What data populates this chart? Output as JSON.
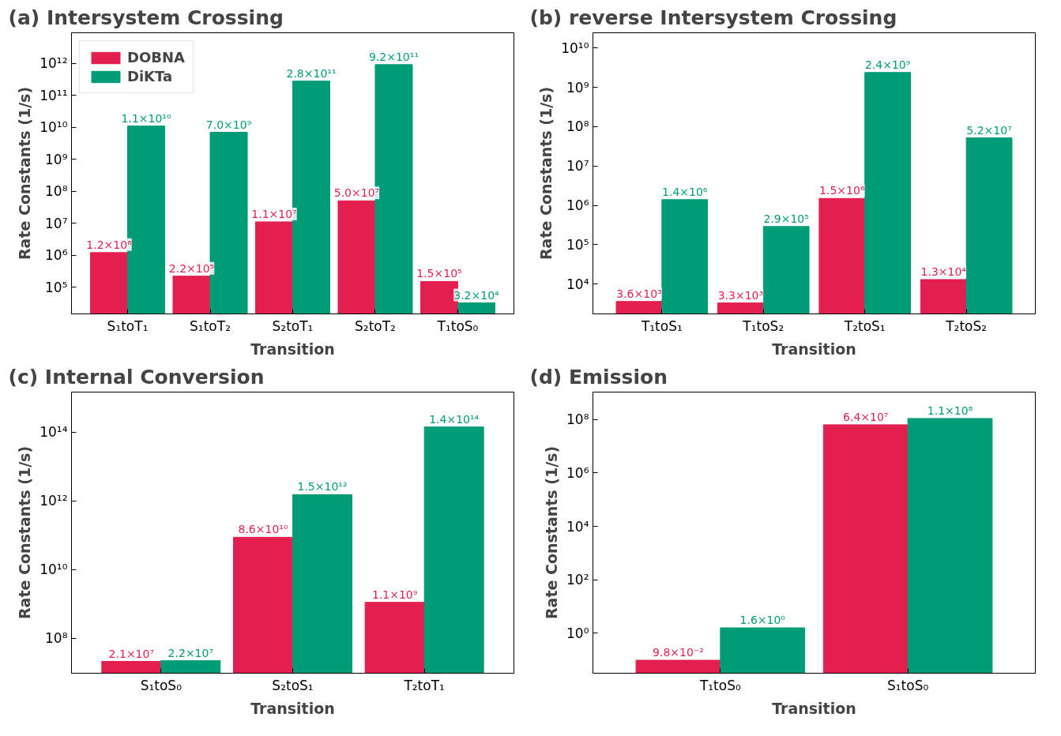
{
  "chart_data": [
    {
      "type": "bar",
      "title": "(a) Intersystem Crossing",
      "xlabel": "Transition",
      "ylabel": "Rate Constants (1/s)",
      "log": true,
      "grid": false,
      "legend": "top left",
      "categories": [
        "S₁toT₁",
        "S₁toT₂",
        "S₂toT₁",
        "S₂toT₂",
        "T₁toS₀"
      ],
      "ylim": [
        14454,
        9120000000000.0
      ],
      "yticks": [
        {
          "value": 100000.0,
          "label": "10⁵"
        },
        {
          "value": 1000000.0,
          "label": "10⁶"
        },
        {
          "value": 10000000.0,
          "label": "10⁷"
        },
        {
          "value": 100000000.0,
          "label": "10⁸"
        },
        {
          "value": 1000000000.0,
          "label": "10⁹"
        },
        {
          "value": 10000000000.0,
          "label": "10¹⁰"
        },
        {
          "value": 100000000000.0,
          "label": "10¹¹"
        },
        {
          "value": 1000000000000.0,
          "label": "10¹²"
        }
      ],
      "series": [
        {
          "name": "DOBNA",
          "color": "#e31f4f",
          "values": [
            1200000.0,
            220000.0,
            11000000.0,
            50000000.0,
            150000.0
          ],
          "value_labels": [
            "1.2×10⁶",
            "2.2×10⁵",
            "1.1×10⁷",
            "5.0×10⁷",
            "1.5×10⁵"
          ]
        },
        {
          "name": "DiKTa",
          "color": "#009b77",
          "values": [
            11000000000.0,
            7000000000.0,
            280000000000.0,
            920000000000.0,
            32000.0
          ],
          "value_labels": [
            "1.1×10¹⁰",
            "7.0×10⁹",
            "2.8×10¹¹",
            "9.2×10¹¹",
            "3.2×10⁴"
          ]
        }
      ]
    },
    {
      "type": "bar",
      "title": "(b) reverse Intersystem Crossing",
      "xlabel": "Transition",
      "ylabel": "Rate Constants (1/s)",
      "log": true,
      "grid": false,
      "categories": [
        "T₁toS₁",
        "T₁toS₂",
        "T₂toS₁",
        "T₂toS₂"
      ],
      "ylim": [
        1738,
        24500000000.0
      ],
      "yticks": [
        {
          "value": 10000.0,
          "label": "10⁴"
        },
        {
          "value": 100000.0,
          "label": "10⁵"
        },
        {
          "value": 1000000.0,
          "label": "10⁶"
        },
        {
          "value": 10000000.0,
          "label": "10⁷"
        },
        {
          "value": 100000000.0,
          "label": "10⁸"
        },
        {
          "value": 1000000000.0,
          "label": "10⁹"
        },
        {
          "value": 10000000000.0,
          "label": "10¹⁰"
        }
      ],
      "series": [
        {
          "color": "#e31f4f",
          "values": [
            3600.0,
            3300.0,
            1500000.0,
            13000.0
          ],
          "value_labels": [
            "3.6×10³",
            "3.3×10³",
            "1.5×10⁶",
            "1.3×10⁴"
          ]
        },
        {
          "color": "#009b77",
          "values": [
            1400000.0,
            290000.0,
            2400000000.0,
            52000000.0
          ],
          "value_labels": [
            "1.4×10⁶",
            "2.9×10⁵",
            "2.4×10⁹",
            "5.2×10⁷"
          ]
        }
      ]
    },
    {
      "type": "bar",
      "title": "(c) Internal Conversion",
      "xlabel": "Transition",
      "ylabel": "Rate Constants (1/s)",
      "log": true,
      "grid": false,
      "categories": [
        "S₁toS₀",
        "S₂toS₁",
        "T₂toT₁"
      ],
      "ylim": [
        9500000.0,
        1450000000000000.0
      ],
      "yticks": [
        {
          "value": 100000000.0,
          "label": "10⁸"
        },
        {
          "value": 10000000000.0,
          "label": "10¹⁰"
        },
        {
          "value": 1000000000000.0,
          "label": "10¹²"
        },
        {
          "value": 100000000000000.0,
          "label": "10¹⁴"
        }
      ],
      "series": [
        {
          "color": "#e31f4f",
          "values": [
            21000000.0,
            86000000000.0,
            1100000000.0
          ],
          "value_labels": [
            "2.1×10⁷",
            "8.6×10¹⁰",
            "1.1×10⁹"
          ]
        },
        {
          "color": "#009b77",
          "values": [
            22000000.0,
            1500000000000.0,
            140000000000000.0
          ],
          "value_labels": [
            "2.2×10⁷",
            "1.5×10¹²",
            "1.4×10¹⁴"
          ]
        }
      ]
    },
    {
      "type": "bar",
      "title": "(d) Emission",
      "xlabel": "Transition",
      "ylabel": "Rate Constants (1/s)",
      "log": true,
      "grid": false,
      "categories": [
        "T₁toS₀",
        "S₁toS₀"
      ],
      "ylim": [
        0.032,
        1070000000.0
      ],
      "yticks": [
        {
          "value": 1,
          "label": "10⁰"
        },
        {
          "value": 100,
          "label": "10²"
        },
        {
          "value": 10000.0,
          "label": "10⁴"
        },
        {
          "value": 1000000.0,
          "label": "10⁶"
        },
        {
          "value": 100000000.0,
          "label": "10⁸"
        }
      ],
      "series": [
        {
          "color": "#e31f4f",
          "values": [
            0.098,
            64000000.0
          ],
          "value_labels": [
            "9.8×10⁻²",
            "6.4×10⁷"
          ]
        },
        {
          "color": "#009b77",
          "values": [
            1.6,
            110000000.0
          ],
          "value_labels": [
            "1.6×10⁰",
            "1.1×10⁸"
          ]
        }
      ]
    }
  ]
}
